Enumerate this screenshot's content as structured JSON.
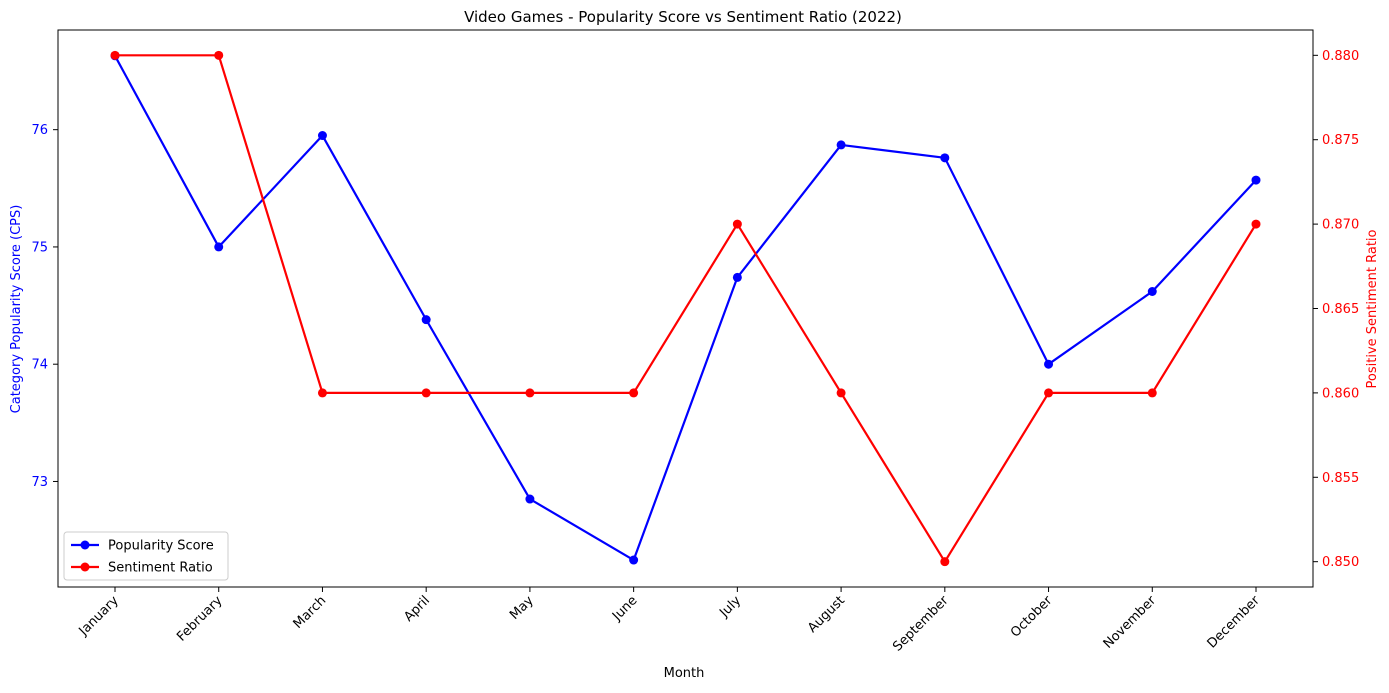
{
  "chart_data": {
    "type": "line",
    "title": "Video Games - Popularity Score vs Sentiment Ratio (2022)",
    "xlabel": "Month",
    "ylabel_left": "Category Popularity Score (CPS)",
    "ylabel_right": "Positive Sentiment Ratio",
    "categories": [
      "January",
      "February",
      "March",
      "April",
      "May",
      "June",
      "July",
      "August",
      "September",
      "October",
      "November",
      "December"
    ],
    "ylim_left": [
      72.1,
      76.85
    ],
    "ylim_right": [
      0.8485,
      0.8815
    ],
    "yticks_left": [
      73,
      74,
      75,
      76
    ],
    "yticks_right": [
      0.85,
      0.855,
      0.86,
      0.865,
      0.87,
      0.875,
      0.88
    ],
    "ytick_labels_left": [
      "73",
      "74",
      "75",
      "76"
    ],
    "ytick_labels_right": [
      "0.850",
      "0.855",
      "0.860",
      "0.865",
      "0.870",
      "0.875",
      "0.880"
    ],
    "grid": false,
    "legend_position": "lower-left",
    "series": [
      {
        "name": "Popularity Score",
        "axis": "left",
        "color": "#0000ff",
        "values": [
          76.63,
          75.0,
          75.95,
          74.38,
          72.85,
          72.33,
          74.74,
          75.87,
          75.76,
          74.0,
          74.62,
          75.57
        ]
      },
      {
        "name": "Sentiment Ratio",
        "axis": "right",
        "color": "#ff0000",
        "values": [
          0.88,
          0.88,
          0.86,
          0.86,
          0.86,
          0.86,
          0.87,
          0.86,
          0.85,
          0.86,
          0.86,
          0.87
        ]
      }
    ]
  }
}
